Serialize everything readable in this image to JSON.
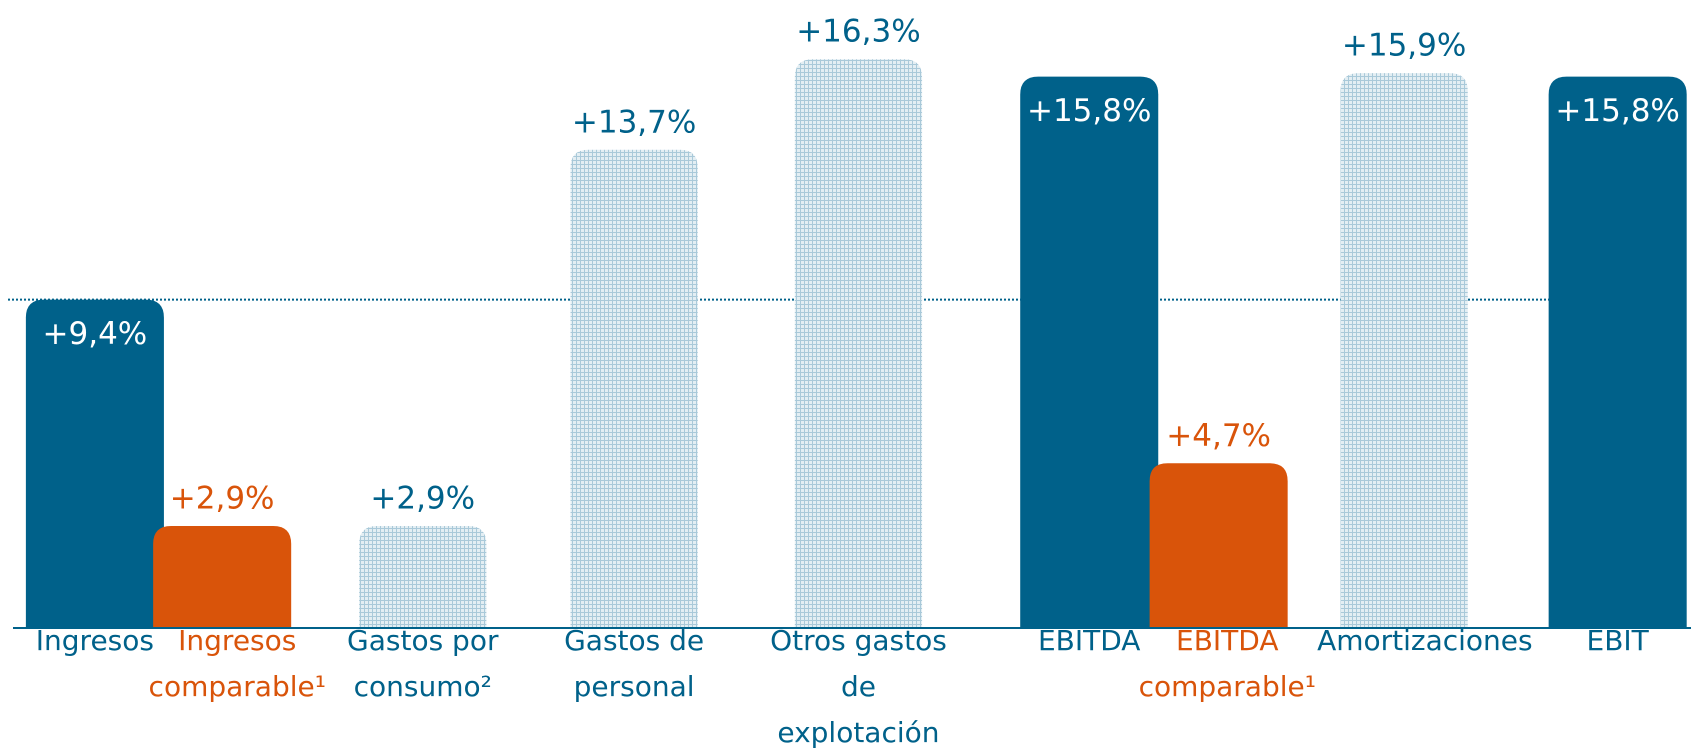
{
  "chart_data": {
    "type": "bar",
    "categories": [
      "Ingresos",
      "Ingresos\ncomparable¹",
      "Gastos por\nconsumo²",
      "Gastos de\npersonal",
      "Otros gastos de\nexplotación",
      "EBITDA",
      "EBITDA\ncomparable¹",
      "Amortizaciones",
      "EBIT"
    ],
    "values": [
      9.4,
      2.9,
      2.9,
      13.7,
      16.3,
      15.8,
      4.7,
      15.9,
      15.8
    ],
    "value_labels": [
      "+9,4%",
      "+2,9%",
      "+2,9%",
      "+13,7%",
      "+16,3%",
      "+15,8%",
      "+4,7%",
      "+15,9%",
      "+15,8%"
    ],
    "colors": [
      "#00618a",
      "#d9540a",
      "#c9dce6",
      "#c9dce6",
      "#c9dce6",
      "#00618a",
      "#d9540a",
      "#c9dce6",
      "#00618a"
    ],
    "hatched": [
      false,
      false,
      true,
      true,
      true,
      false,
      false,
      true,
      false
    ],
    "label_inside": [
      true,
      false,
      false,
      false,
      false,
      true,
      false,
      false,
      true
    ],
    "category_colors": [
      "#00618a",
      "#d9540a",
      "#00618a",
      "#00618a",
      "#00618a",
      "#00618a",
      "#d9540a",
      "#00618a",
      "#00618a"
    ],
    "reference_line": 9.4,
    "ylim": [
      0,
      18
    ]
  }
}
